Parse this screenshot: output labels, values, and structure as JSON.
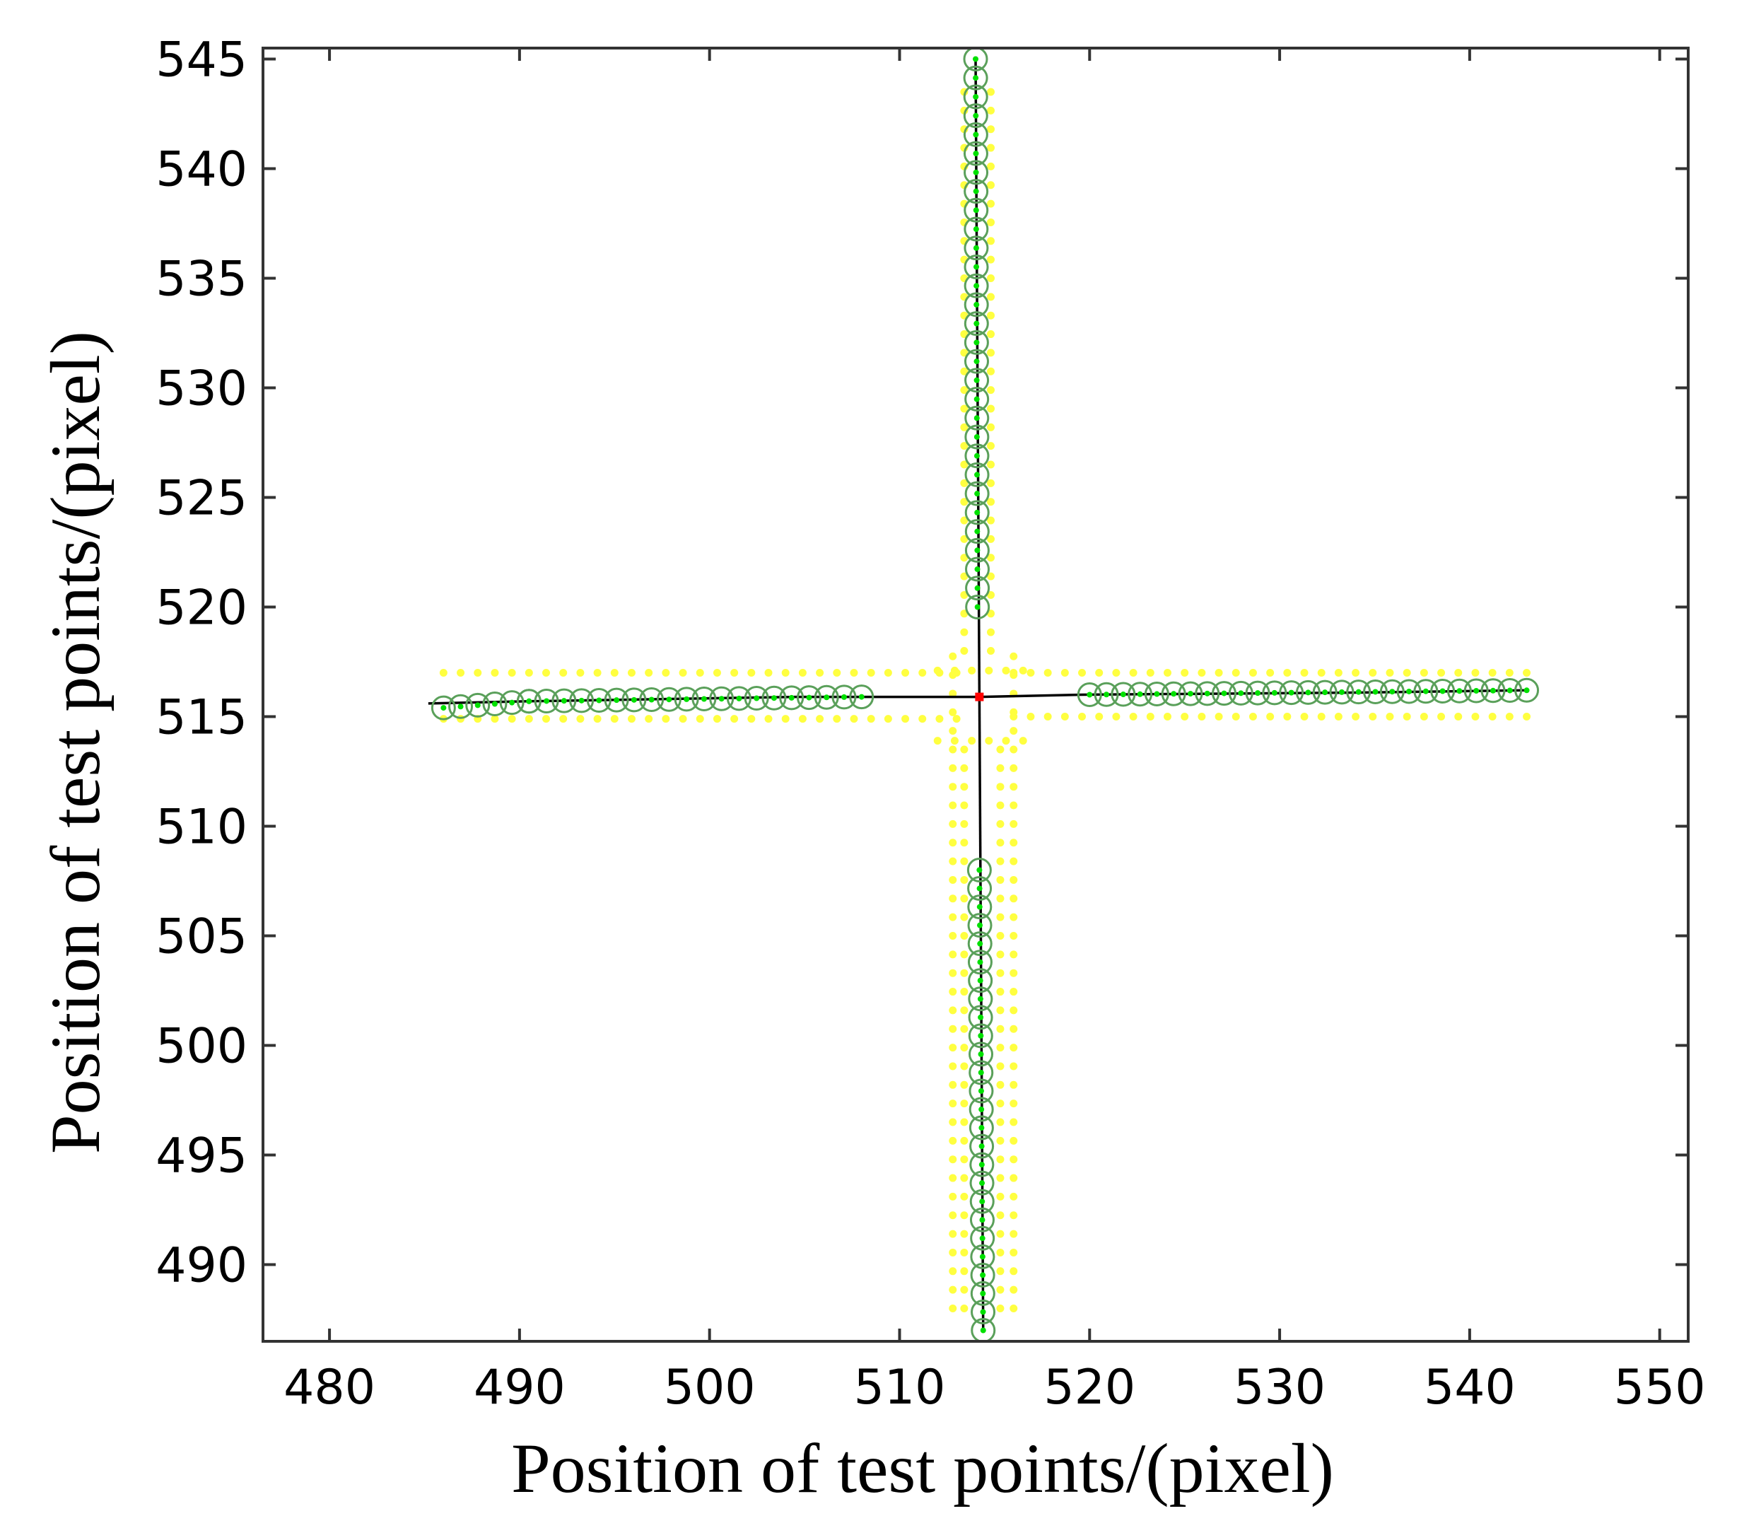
{
  "chart_data": {
    "type": "scatter",
    "title": "",
    "xlabel": "Position of test points/(pixel)",
    "ylabel": "Position of test points/(pixel)",
    "xlim": [
      476.5,
      551.5
    ],
    "ylim": [
      486.5,
      545.5
    ],
    "xticks": [
      480,
      490,
      500,
      510,
      520,
      530,
      540,
      550
    ],
    "yticks": [
      490,
      495,
      500,
      505,
      510,
      515,
      520,
      525,
      530,
      535,
      540,
      545
    ],
    "grid": false,
    "legend": "none",
    "colors": {
      "circle_edge": "#5aa05a",
      "point": "#00e000",
      "candidate": "#ffff40",
      "fit_line": "#000000",
      "center": "#ff0000",
      "frame": "#333333"
    },
    "center": {
      "x": 514.2,
      "y": 515.9
    },
    "fit_lines": [
      {
        "x": [
          485.2,
          490.5,
          504.5,
          514.2
        ],
        "y": [
          515.6,
          515.7,
          515.9,
          515.9
        ]
      },
      {
        "x": [
          514.2,
          519.6,
          534.5,
          543.0
        ],
        "y": [
          515.9,
          516.0,
          516.1,
          516.2
        ]
      },
      {
        "x": [
          514.0,
          514.2
        ],
        "y": [
          545.0,
          515.9
        ]
      },
      {
        "x": [
          514.2,
          514.4
        ],
        "y": [
          515.9,
          487.0
        ]
      }
    ],
    "segments": [
      {
        "orientation": "h",
        "start": [
          486.0,
          515.4
        ],
        "end": [
          490.5,
          515.7
        ],
        "step": 0.9
      },
      {
        "orientation": "h",
        "start": [
          490.5,
          515.7
        ],
        "end": [
          508.0,
          515.9
        ],
        "step": 0.9
      },
      {
        "orientation": "h",
        "start": [
          520.0,
          516.0
        ],
        "end": [
          543.0,
          516.2
        ],
        "step": 0.9
      },
      {
        "orientation": "v",
        "start": [
          514.0,
          545.0
        ],
        "end": [
          514.1,
          520.0
        ],
        "step": 0.85
      },
      {
        "orientation": "v",
        "start": [
          514.2,
          508.0
        ],
        "end": [
          514.4,
          487.0
        ],
        "step": 0.85
      }
    ],
    "candidate_bands": [
      {
        "orientation": "h",
        "x_range": [
          486.0,
          513.0
        ],
        "y_levels": [
          517.0,
          514.9
        ],
        "step": 0.9
      },
      {
        "orientation": "h",
        "x_range": [
          516.0,
          543.0
        ],
        "y_levels": [
          517.0,
          515.0
        ],
        "step": 0.9
      },
      {
        "orientation": "v",
        "y_range": [
          518.0,
          544.0
        ],
        "x_levels": [
          513.4,
          514.8
        ],
        "step": 0.85
      },
      {
        "orientation": "v",
        "y_range": [
          488.0,
          514.0
        ],
        "x_levels": [
          513.4,
          515.3
        ],
        "step": 0.85
      },
      {
        "orientation": "v",
        "y_range": [
          488.0,
          518.0
        ],
        "x_levels": [
          512.8,
          516.0
        ],
        "step": 0.85
      },
      {
        "orientation": "h",
        "x_range": [
          512.0,
          517.0
        ],
        "y_levels": [
          513.9,
          517.1
        ],
        "step": 0.9
      }
    ]
  }
}
